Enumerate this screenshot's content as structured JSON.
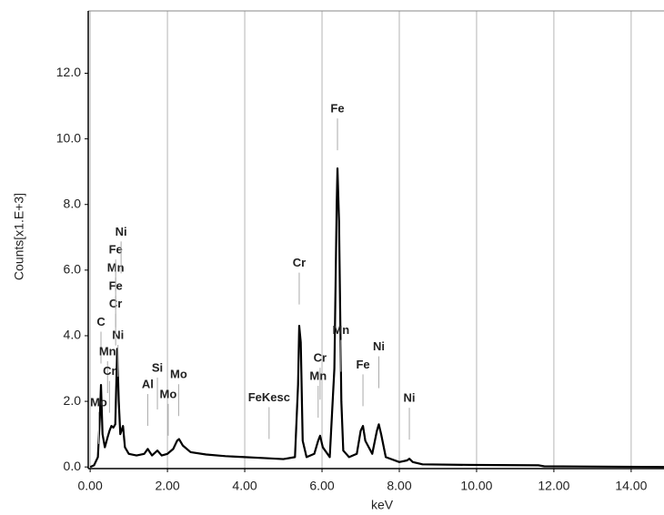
{
  "chart_data": {
    "type": "line",
    "x_label": "keV",
    "y_label": "Counts[x1.E+3]",
    "xlim": [
      -0.05,
      14.85
    ],
    "ylim": [
      -0.05,
      13.9
    ],
    "xticks": [
      {
        "value": 0,
        "label": "0.00"
      },
      {
        "value": 2,
        "label": "2.00"
      },
      {
        "value": 4,
        "label": "4.00"
      },
      {
        "value": 6,
        "label": "6.00"
      },
      {
        "value": 8,
        "label": "8.00"
      },
      {
        "value": 10,
        "label": "10.00"
      },
      {
        "value": 12,
        "label": "12.00"
      },
      {
        "value": 14,
        "label": "14.00"
      }
    ],
    "yticks": [
      {
        "value": 0,
        "label": "0.0"
      },
      {
        "value": 2,
        "label": "2.0"
      },
      {
        "value": 4,
        "label": "4.0"
      },
      {
        "value": 6,
        "label": "6.0"
      },
      {
        "value": 8,
        "label": "8.0"
      },
      {
        "value": 10,
        "label": "10.0"
      },
      {
        "value": 12,
        "label": "12.0"
      }
    ],
    "grid": true,
    "color": "#000000",
    "x": [
      0.0,
      0.1,
      0.2,
      0.25,
      0.28,
      0.32,
      0.38,
      0.45,
      0.5,
      0.55,
      0.6,
      0.65,
      0.7,
      0.74,
      0.78,
      0.85,
      0.9,
      1.0,
      1.2,
      1.4,
      1.49,
      1.6,
      1.74,
      1.85,
      2.0,
      2.15,
      2.25,
      2.3,
      2.4,
      2.6,
      3.0,
      3.5,
      4.0,
      4.5,
      5.0,
      5.3,
      5.38,
      5.41,
      5.45,
      5.5,
      5.6,
      5.8,
      5.9,
      5.95,
      6.02,
      6.2,
      6.32,
      6.38,
      6.4,
      6.44,
      6.5,
      6.55,
      6.7,
      6.9,
      7.0,
      7.06,
      7.12,
      7.3,
      7.42,
      7.47,
      7.53,
      7.65,
      8.0,
      8.2,
      8.26,
      8.35,
      8.6,
      10.0,
      11.6,
      11.75,
      14.85
    ],
    "values": [
      0,
      0.05,
      0.3,
      1.5,
      2.5,
      1.0,
      0.6,
      0.9,
      1.1,
      1.25,
      1.2,
      1.3,
      3.6,
      2.0,
      1.0,
      1.25,
      0.6,
      0.4,
      0.35,
      0.4,
      0.55,
      0.35,
      0.5,
      0.35,
      0.4,
      0.55,
      0.8,
      0.85,
      0.65,
      0.45,
      0.38,
      0.33,
      0.3,
      0.27,
      0.24,
      0.3,
      2.5,
      4.3,
      3.8,
      0.8,
      0.3,
      0.4,
      0.8,
      0.95,
      0.6,
      0.3,
      3.0,
      8.0,
      9.1,
      7.5,
      2.0,
      0.5,
      0.3,
      0.4,
      1.1,
      1.25,
      0.8,
      0.4,
      1.1,
      1.3,
      1.0,
      0.3,
      0.15,
      0.2,
      0.25,
      0.15,
      0.08,
      0.06,
      0.05,
      0.02,
      0.0
    ],
    "peak_labels": [
      {
        "text": "Mo",
        "energy": 0.22,
        "height": 1.95
      },
      {
        "text": "C",
        "energy": 0.28,
        "height": 4.4
      },
      {
        "text": "Mn",
        "energy": 0.45,
        "height": 3.5
      },
      {
        "text": "Cr",
        "energy": 0.5,
        "height": 2.9
      },
      {
        "text": "Ni",
        "energy": 0.72,
        "height": 4.0
      },
      {
        "text": "Cr",
        "energy": 0.66,
        "height": 4.95
      },
      {
        "text": "Fe",
        "energy": 0.66,
        "height": 5.5
      },
      {
        "text": "Mn",
        "energy": 0.66,
        "height": 6.05
      },
      {
        "text": "Fe",
        "energy": 0.66,
        "height": 6.6
      },
      {
        "text": "Ni",
        "energy": 0.8,
        "height": 7.15
      },
      {
        "text": "Al",
        "energy": 1.49,
        "height": 2.5
      },
      {
        "text": "Si",
        "energy": 1.74,
        "height": 3.0
      },
      {
        "text": "Mo",
        "energy": 2.02,
        "height": 2.2
      },
      {
        "text": "Mo",
        "energy": 2.29,
        "height": 2.8
      },
      {
        "text": "FeKesc",
        "energy": 4.63,
        "height": 2.1
      },
      {
        "text": "Cr",
        "energy": 5.41,
        "height": 6.2
      },
      {
        "text": "Mn",
        "energy": 5.9,
        "height": 2.75
      },
      {
        "text": "Cr",
        "energy": 5.95,
        "height": 3.3
      },
      {
        "text": "Fe",
        "energy": 6.4,
        "height": 10.9
      },
      {
        "text": "Mn",
        "energy": 6.49,
        "height": 4.15
      },
      {
        "text": "Fe",
        "energy": 7.06,
        "height": 3.1
      },
      {
        "text": "Ni",
        "energy": 7.47,
        "height": 3.65
      },
      {
        "text": "Ni",
        "energy": 8.26,
        "height": 2.08
      }
    ]
  }
}
